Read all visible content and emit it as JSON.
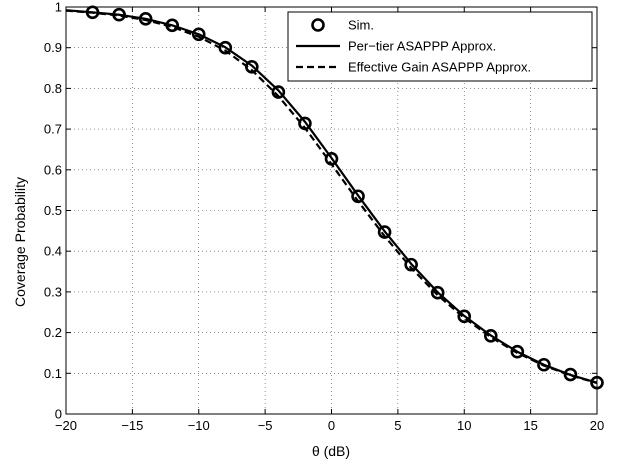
{
  "chart_data": {
    "type": "line",
    "title": "",
    "xlabel": "θ (dB)",
    "ylabel": "Coverage Probability",
    "xlim": [
      -20,
      20
    ],
    "ylim": [
      0,
      1
    ],
    "xticks": [
      -20,
      -15,
      -10,
      -5,
      0,
      5,
      10,
      15,
      20
    ],
    "yticks": [
      0,
      0.1,
      0.2,
      0.3,
      0.4,
      0.5,
      0.6,
      0.7,
      0.8,
      0.9,
      1
    ],
    "xtick_labels": [
      "−20",
      "−15",
      "−10",
      "−5",
      "0",
      "5",
      "10",
      "15",
      "20"
    ],
    "ytick_labels": [
      "0",
      "0.1",
      "0.2",
      "0.3",
      "0.4",
      "0.5",
      "0.6",
      "0.7",
      "0.8",
      "0.9",
      "1"
    ],
    "grid": true,
    "legend_position": "top-right",
    "series": [
      {
        "name": "Sim.",
        "style": "markers-circle",
        "color": "#000000",
        "x": [
          -18,
          -16,
          -14,
          -12,
          -10,
          -8,
          -6,
          -4,
          -2,
          0,
          2,
          4,
          6,
          8,
          10,
          12,
          14,
          16,
          18,
          20
        ],
        "y": [
          0.987,
          0.981,
          0.971,
          0.955,
          0.933,
          0.9,
          0.853,
          0.791,
          0.714,
          0.627,
          0.535,
          0.447,
          0.367,
          0.298,
          0.24,
          0.192,
          0.153,
          0.121,
          0.097,
          0.077
        ]
      },
      {
        "name": "Per−tier ASAPPP Approx.",
        "style": "solid",
        "color": "#000000",
        "x": [
          -20,
          -18,
          -16,
          -14,
          -12,
          -10,
          -8,
          -6,
          -4,
          -2,
          0,
          2,
          4,
          6,
          8,
          10,
          12,
          14,
          16,
          18,
          20
        ],
        "y": [
          0.992,
          0.987,
          0.981,
          0.971,
          0.955,
          0.933,
          0.901,
          0.856,
          0.795,
          0.718,
          0.629,
          0.537,
          0.449,
          0.369,
          0.299,
          0.241,
          0.193,
          0.153,
          0.121,
          0.096,
          0.077
        ]
      },
      {
        "name": "Effective Gain ASAPPP Approx.",
        "style": "dashed",
        "color": "#000000",
        "x": [
          -20,
          -18,
          -16,
          -14,
          -12,
          -10,
          -8,
          -6,
          -4,
          -2,
          0,
          2,
          4,
          6,
          8,
          10,
          12,
          14,
          16,
          18,
          20
        ],
        "y": [
          0.991,
          0.986,
          0.979,
          0.968,
          0.951,
          0.927,
          0.893,
          0.845,
          0.781,
          0.703,
          0.614,
          0.523,
          0.437,
          0.359,
          0.292,
          0.236,
          0.189,
          0.15,
          0.119,
          0.095,
          0.076
        ]
      }
    ]
  }
}
